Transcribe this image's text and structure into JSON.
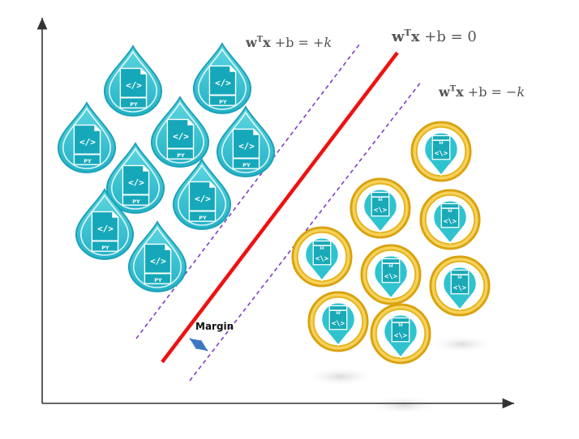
{
  "equations": {
    "plus": {
      "w": "w",
      "T": "T",
      "x": "x",
      "rest": "+b = +",
      "k": "k"
    },
    "zero": {
      "w": "w",
      "T": "T",
      "x": "x",
      "rest": "+b = 0"
    },
    "minus": {
      "w": "w",
      "T": "T",
      "x": "x",
      "rest": "+b = −",
      "k": "k"
    }
  },
  "margin_label": "Margin",
  "icons": {
    "drop_file_tag": "PY",
    "drop_file_symbol": "</>",
    "coin_file_symbol": "<\\>",
    "coin_file_tag": "lıl"
  },
  "colors": {
    "decision_boundary": "#ee1111",
    "margin_lines": "#7f3fbf",
    "margin_arrow": "#3a78c2",
    "axes": "#333333",
    "drop_fill": "#3cc3d1",
    "drop_stroke": "#1f9fb5",
    "coin_ring": "#e8b515",
    "coin_fill": "#2cc2cc"
  }
}
